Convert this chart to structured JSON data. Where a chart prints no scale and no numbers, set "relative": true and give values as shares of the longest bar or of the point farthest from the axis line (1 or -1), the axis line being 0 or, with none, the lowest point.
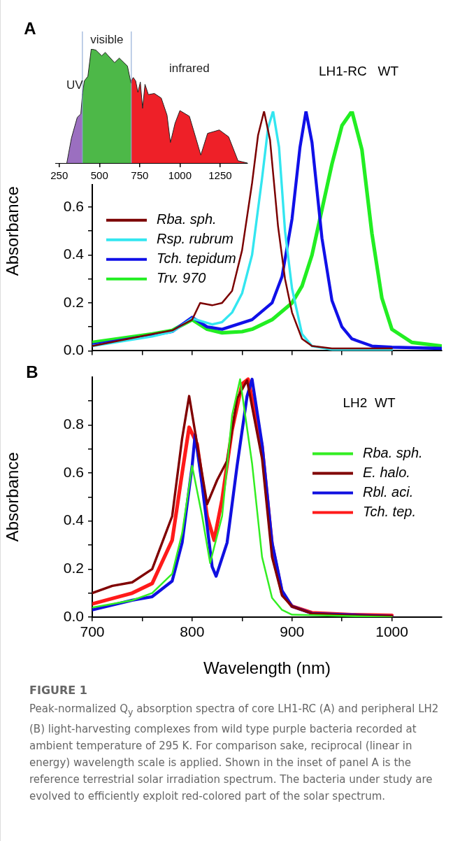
{
  "chart_data": [
    {
      "type": "line",
      "title": "A",
      "ylabel": "Absorbance",
      "annotations": [
        "LH1-RC   WT"
      ],
      "legend": "left",
      "grid": false,
      "tick_labels": "y",
      "xlim": [
        700,
        1050
      ],
      "xticks": [
        700,
        {
          "value": 750,
          "label": null
        },
        800,
        {
          "value": 850,
          "label": null
        },
        900,
        {
          "value": 950,
          "label": null
        },
        1000
      ],
      "ylim": [
        0,
        1
      ],
      "yticks": [
        {
          "value": 0,
          "label": "0.0"
        },
        {
          "value": 0.1,
          "label": null
        },
        0.2,
        {
          "value": 0.3,
          "label": null
        },
        0.4,
        {
          "value": 0.5,
          "label": null
        },
        0.6
      ],
      "series": [
        {
          "name": "Rba. sph.",
          "color": "#7b0000",
          "x": [
            700,
            760,
            780,
            800,
            808,
            820,
            830,
            840,
            850,
            860,
            866,
            872,
            878,
            886,
            893,
            900,
            910,
            920,
            940,
            1000
          ],
          "values": [
            0.02,
            0.07,
            0.085,
            0.13,
            0.2,
            0.19,
            0.2,
            0.25,
            0.42,
            0.7,
            0.9,
            1.0,
            0.88,
            0.52,
            0.3,
            0.16,
            0.05,
            0.02,
            0.01,
            0.01
          ]
        },
        {
          "name": "Rsp. rubrum",
          "color": "#33e6f0",
          "x": [
            700,
            760,
            780,
            800,
            820,
            830,
            840,
            850,
            860,
            870,
            876,
            881,
            887,
            893,
            900,
            910,
            920,
            940,
            1000
          ],
          "values": [
            0.02,
            0.06,
            0.08,
            0.135,
            0.11,
            0.12,
            0.16,
            0.24,
            0.4,
            0.72,
            0.93,
            1.0,
            0.85,
            0.5,
            0.26,
            0.07,
            0.02,
            0.005,
            0.005
          ]
        },
        {
          "name": "Tch. tepidum",
          "color": "#1010e8",
          "x": [
            700,
            760,
            780,
            800,
            815,
            830,
            860,
            880,
            890,
            900,
            908,
            914,
            920,
            930,
            940,
            950,
            960,
            980,
            1000,
            1050
          ],
          "values": [
            0.025,
            0.065,
            0.08,
            0.14,
            0.1,
            0.09,
            0.13,
            0.2,
            0.31,
            0.55,
            0.85,
            1.0,
            0.87,
            0.47,
            0.21,
            0.1,
            0.05,
            0.02,
            0.015,
            0.01
          ]
        },
        {
          "name": "Trv. 970",
          "color": "#22ee22",
          "x": [
            700,
            760,
            780,
            800,
            815,
            830,
            850,
            860,
            880,
            900,
            910,
            920,
            930,
            940,
            950,
            960,
            970,
            980,
            990,
            1000,
            1020,
            1050
          ],
          "values": [
            0.035,
            0.07,
            0.085,
            0.13,
            0.09,
            0.075,
            0.08,
            0.09,
            0.13,
            0.2,
            0.27,
            0.4,
            0.59,
            0.78,
            0.94,
            1.0,
            0.84,
            0.49,
            0.22,
            0.09,
            0.035,
            0.02
          ]
        }
      ]
    },
    {
      "type": "area",
      "relative": true,
      "legend": false,
      "grid": false,
      "tick_labels": "x",
      "xlim": [
        225,
        1420
      ],
      "xticks": [
        250,
        500,
        750,
        1000,
        1250
      ],
      "ref_lines": [
        {
          "axis": "x",
          "value": 394,
          "color": "#7f9fd0"
        },
        {
          "axis": "x",
          "value": 698,
          "color": "#7f9fd0"
        }
      ],
      "series": [
        {
          "name": "UV",
          "color": "#9b6fc0",
          "x": [
            297,
            326,
            362,
            384,
            394
          ],
          "values": [
            0,
            0.22,
            0.4,
            0.43,
            0.6
          ]
        },
        {
          "name": "visible",
          "color": "#4db848",
          "x": [
            394,
            406,
            428,
            449,
            478,
            514,
            536,
            594,
            623,
            674,
            696,
            698
          ],
          "values": [
            0.6,
            0.72,
            0.76,
            1.0,
            0.99,
            0.94,
            0.97,
            0.88,
            0.92,
            0.85,
            0.7,
            0.72
          ]
        },
        {
          "name": "infrared",
          "color": "#ee2028",
          "x": [
            698,
            710,
            725,
            739,
            754,
            768,
            783,
            804,
            841,
            884,
            920,
            941,
            970,
            1000,
            1059,
            1101,
            1130,
            1172,
            1245,
            1303,
            1361,
            1419
          ],
          "values": [
            0.72,
            0.75,
            0.72,
            0.62,
            0.71,
            0.48,
            0.69,
            0.6,
            0.61,
            0.57,
            0.42,
            0.18,
            0.35,
            0.46,
            0.41,
            0.21,
            0.07,
            0.26,
            0.29,
            0.23,
            0.02,
            0
          ]
        }
      ]
    },
    {
      "type": "line",
      "title": "B",
      "xlabel": "Wavelength (nm)",
      "ylabel": "Absorbance",
      "legend": "right",
      "grid": false,
      "annotations": [
        "LH2  WT",
        "FIGURE 1",
        "Peak-normalized Q$_{y}$ absorption spectra of core LH1-RC (A) and peripheral LH2 (B) light-harvesting complexes from wild type purple bacteria recorded at ambient temperature of 295 K. For comparison sake, reciprocal (linear in energy) wavelength scale is applied. Shown in the inset of panel A is the reference terrestrial solar irradiation spectrum. The bacteria under study are evolved to efficiently exploit red-colored part of the solar spectrum."
      ],
      "xlim": [
        700,
        1050
      ],
      "xticks": [
        700,
        {
          "value": 750,
          "label": null
        },
        800,
        {
          "value": 850,
          "label": null
        },
        900,
        {
          "value": 950,
          "label": null
        },
        1000
      ],
      "ylim": [
        0,
        1
      ],
      "yticks": [
        {
          "value": 0,
          "label": "0.0"
        },
        {
          "value": 0.1,
          "label": null
        },
        0.2,
        {
          "value": 0.3,
          "label": null
        },
        0.4,
        {
          "value": 0.5,
          "label": null
        },
        0.6,
        {
          "value": 0.7,
          "label": null
        },
        0.8,
        {
          "value": 0.9,
          "label": null
        }
      ],
      "series": [
        {
          "name": "Rba. sph.",
          "color": "#33ee22",
          "x": [
            700,
            740,
            760,
            780,
            790,
            800,
            810,
            818,
            830,
            840,
            848,
            860,
            870,
            880,
            890,
            900,
            1000
          ],
          "values": [
            0.04,
            0.07,
            0.1,
            0.18,
            0.35,
            0.63,
            0.42,
            0.225,
            0.42,
            0.84,
            0.99,
            0.64,
            0.25,
            0.08,
            0.03,
            0.01,
            0.0
          ]
        },
        {
          "name": "E. halo.",
          "color": "#800000",
          "x": [
            700,
            720,
            740,
            760,
            780,
            790,
            797,
            805,
            815,
            825,
            835,
            845,
            855,
            870,
            880,
            890,
            900,
            920,
            960,
            1000
          ],
          "values": [
            0.1,
            0.13,
            0.145,
            0.2,
            0.42,
            0.745,
            0.92,
            0.72,
            0.47,
            0.57,
            0.65,
            0.91,
            0.985,
            0.66,
            0.25,
            0.09,
            0.045,
            0.015,
            0.007,
            0.004
          ]
        },
        {
          "name": "Rbl. aci.",
          "color": "#1010e0",
          "x": [
            700,
            740,
            760,
            780,
            790,
            800,
            803,
            810,
            820,
            824,
            835,
            845,
            855,
            860,
            870,
            880,
            890,
            900,
            920,
            1000
          ],
          "values": [
            0.03,
            0.07,
            0.085,
            0.15,
            0.31,
            0.63,
            0.76,
            0.55,
            0.21,
            0.17,
            0.31,
            0.63,
            0.92,
            0.99,
            0.72,
            0.31,
            0.11,
            0.045,
            0.015,
            0.003
          ]
        },
        {
          "name": "Tch. tep.",
          "color": "#ff1a1a",
          "x": [
            700,
            740,
            760,
            780,
            790,
            797,
            805,
            815,
            822,
            830,
            840,
            850,
            856,
            870,
            880,
            890,
            900,
            920,
            960,
            1000
          ],
          "values": [
            0.055,
            0.1,
            0.14,
            0.32,
            0.6,
            0.79,
            0.72,
            0.42,
            0.32,
            0.49,
            0.78,
            0.97,
            0.99,
            0.71,
            0.3,
            0.1,
            0.045,
            0.018,
            0.01,
            0.007
          ]
        }
      ]
    }
  ]
}
